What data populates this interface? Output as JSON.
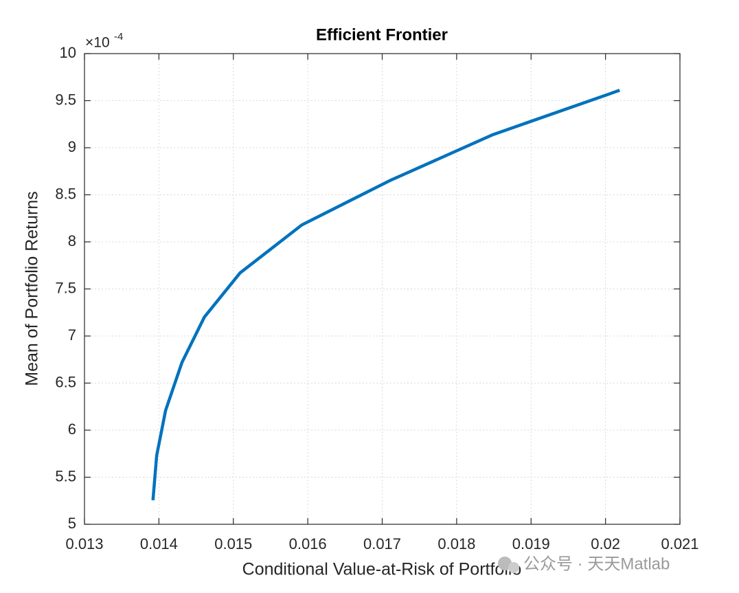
{
  "chart_data": {
    "type": "line",
    "title": "Efficient Frontier",
    "xlabel": "Conditional Value-at-Risk of Portfolio",
    "ylabel": "Mean of Portfolio Returns",
    "y_exponent": {
      "base": "×10",
      "power": "-4"
    },
    "x": [
      0.01392,
      0.01397,
      0.01409,
      0.01431,
      0.01461,
      0.01509,
      0.01592,
      0.0171,
      0.01849,
      0.02019
    ],
    "values": [
      5.255,
      5.73,
      6.21,
      6.72,
      7.2,
      7.67,
      8.18,
      8.65,
      9.14,
      9.61
    ],
    "color": "#0072bd",
    "xlim": [
      0.013,
      0.021
    ],
    "xticks": [
      0.013,
      0.014,
      0.015,
      0.016,
      0.017,
      0.018,
      0.019,
      0.02,
      0.021
    ],
    "ylim": [
      5,
      10
    ],
    "yticks": [
      5,
      5.5,
      6,
      6.5,
      7,
      7.5,
      8,
      8.5,
      9,
      9.5,
      10
    ],
    "grid": true,
    "watermark": "公众号 · 天天Matlab"
  }
}
